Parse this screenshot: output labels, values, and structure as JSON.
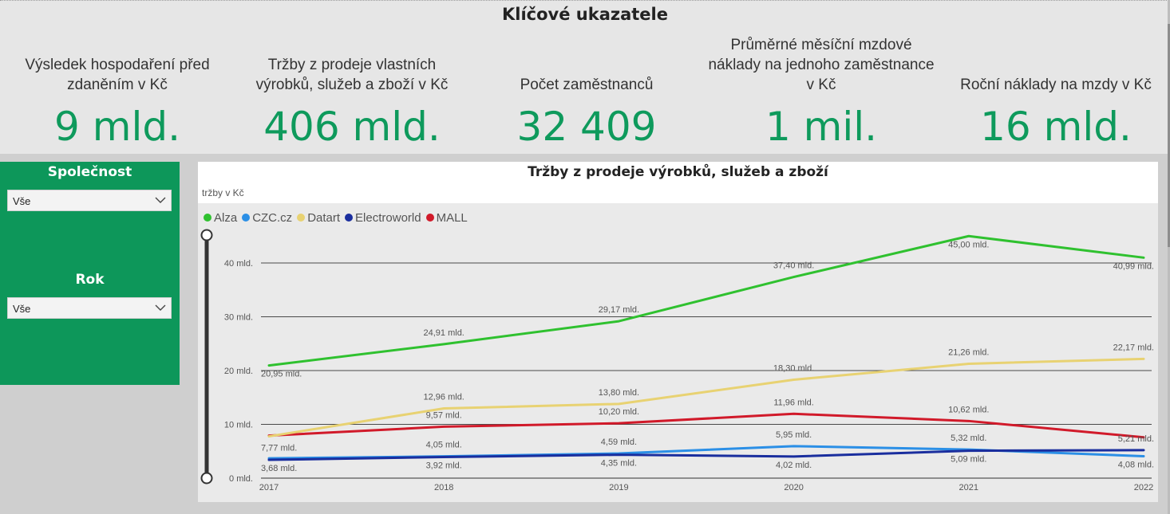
{
  "page": {
    "title": "Klíčové ukazatele"
  },
  "kpis": [
    {
      "label": "Výsledek hospodaření před zdaněním v Kč",
      "value": "9 mld."
    },
    {
      "label": "Tržby z prodeje vlastních výrobků, služeb a zboží v Kč",
      "value": "406 mld."
    },
    {
      "label": "Počet zaměstnanců",
      "value": "32 409"
    },
    {
      "label": "Průměrné měsíční mzdové náklady na jednoho zaměstnance v Kč",
      "value": "1 mil."
    },
    {
      "label": "Roční náklady na mzdy v Kč",
      "value": "16 mld."
    }
  ],
  "slicers": {
    "company": {
      "title": "Společnost",
      "value": "Vše"
    },
    "year": {
      "title": "Rok",
      "value": "Vše"
    }
  },
  "chart_data": {
    "type": "line",
    "title": "Tržby z prodeje výrobků, služeb a zboží",
    "ylabel": "tržby v Kč",
    "xlabel": "",
    "categories": [
      "2017",
      "2018",
      "2019",
      "2020",
      "2021",
      "2022"
    ],
    "y_ticks": [
      "0 mld.",
      "10 mld.",
      "20 mld.",
      "30 mld.",
      "40 mld."
    ],
    "ylim": [
      0,
      45
    ],
    "unit_suffix": " mld.",
    "grid": true,
    "legend_position": "top-left",
    "series": [
      {
        "name": "Alza",
        "color": "#2fc12f",
        "values": [
          20.95,
          24.91,
          29.17,
          37.4,
          45.0,
          40.99
        ],
        "labels": [
          "20,95 mld.",
          "24,91 mld.",
          "29,17 mld.",
          "37,40 mld.",
          "45,00 mld.",
          "40,99 mld."
        ]
      },
      {
        "name": "CZC.cz",
        "color": "#2b8fe6",
        "values": [
          3.68,
          4.05,
          4.59,
          5.95,
          5.32,
          4.08
        ],
        "labels": [
          "3,68 mld.",
          "4,05 mld.",
          "4,59 mld.",
          "5,95 mld.",
          "5,32 mld.",
          "4,08 mld."
        ]
      },
      {
        "name": "Datart",
        "color": "#e8d272",
        "values": [
          7.77,
          12.96,
          13.8,
          18.3,
          21.26,
          22.17
        ],
        "labels": [
          "7,77 mld.",
          "12,96 mld.",
          "13,80 mld.",
          "18,30 mld.",
          "21,26 mld.",
          "22,17 mld."
        ]
      },
      {
        "name": "Electroworld",
        "color": "#1a2e9e",
        "values": [
          3.4,
          3.92,
          4.35,
          4.02,
          5.09,
          5.21
        ],
        "labels": [
          "",
          "3,92 mld.",
          "4,35 mld.",
          "4,02 mld.",
          "5,09 mld.",
          "5,21 mld."
        ]
      },
      {
        "name": "MALL",
        "color": "#d11a2a",
        "values": [
          7.9,
          9.57,
          10.2,
          11.96,
          10.62,
          7.6
        ],
        "labels": [
          "",
          "9,57 mld.",
          "10,20 mld.",
          "11,96 mld.",
          "10,62 mld.",
          ""
        ]
      }
    ]
  }
}
